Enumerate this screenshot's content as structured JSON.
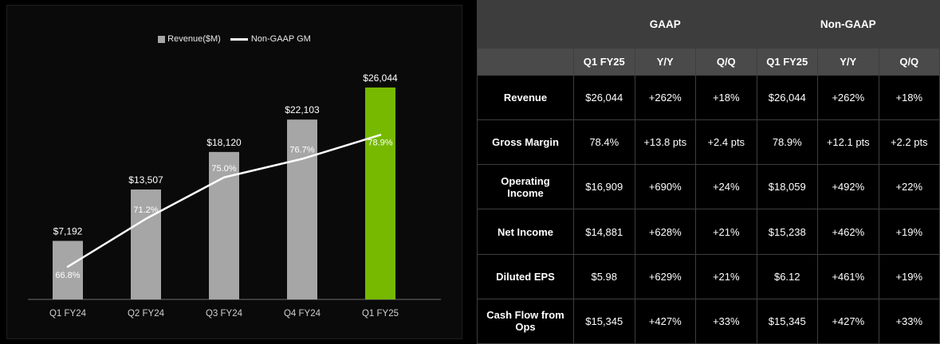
{
  "page": {
    "background": "#000000"
  },
  "chart_data": [
    {
      "type": "bar",
      "title": "",
      "categories": [
        "Q1 FY24",
        "Q2 FY24",
        "Q3 FY24",
        "Q4 FY24",
        "Q1 FY25"
      ],
      "series": [
        {
          "name": "Revenue($M)",
          "kind": "bar",
          "values": [
            7192,
            13507,
            18120,
            22103,
            26044
          ],
          "data_labels": [
            "$7,192",
            "$13,507",
            "$18,120",
            "$22,103",
            "$26,044"
          ]
        },
        {
          "name": "Non-GAAP GM",
          "kind": "line",
          "values": [
            66.8,
            71.2,
            75.0,
            76.7,
            78.9
          ],
          "data_labels": [
            "66.8%",
            "71.2%",
            "75.0%",
            "76.7%",
            "78.9%"
          ]
        }
      ],
      "legend_position": "top",
      "bar_color": "#a6a6a6",
      "highlight_index": 4,
      "highlight_color": "#76b900",
      "line_color": "#ffffff",
      "ylim_bar": [
        0,
        27500
      ],
      "ylim_line": [
        63.8,
        82
      ],
      "grid": false
    },
    {
      "type": "table",
      "group_headers": [
        "",
        "GAAP",
        "Non-GAAP"
      ],
      "column_headers": [
        "",
        "Q1 FY25",
        "Y/Y",
        "Q/Q",
        "Q1 FY25",
        "Y/Y",
        "Q/Q"
      ],
      "rows": [
        {
          "label": "Revenue",
          "cells": [
            "$26,044",
            "+262%",
            "+18%",
            "$26,044",
            "+262%",
            "+18%"
          ]
        },
        {
          "label": "Gross Margin",
          "cells": [
            "78.4%",
            "+13.8 pts",
            "+2.4 pts",
            "78.9%",
            "+12.1 pts",
            "+2.2 pts"
          ]
        },
        {
          "label": "Operating Income",
          "cells": [
            "$16,909",
            "+690%",
            "+24%",
            "$18,059",
            "+492%",
            "+22%"
          ]
        },
        {
          "label": "Net Income",
          "cells": [
            "$14,881",
            "+628%",
            "+21%",
            "$15,238",
            "+462%",
            "+19%"
          ]
        },
        {
          "label": "Diluted EPS",
          "cells": [
            "$5.98",
            "+629%",
            "+21%",
            "$6.12",
            "+461%",
            "+19%"
          ]
        },
        {
          "label": "Cash Flow from Ops",
          "cells": [
            "$15,345",
            "+427%",
            "+33%",
            "$15,345",
            "+427%",
            "+33%"
          ]
        }
      ]
    }
  ]
}
